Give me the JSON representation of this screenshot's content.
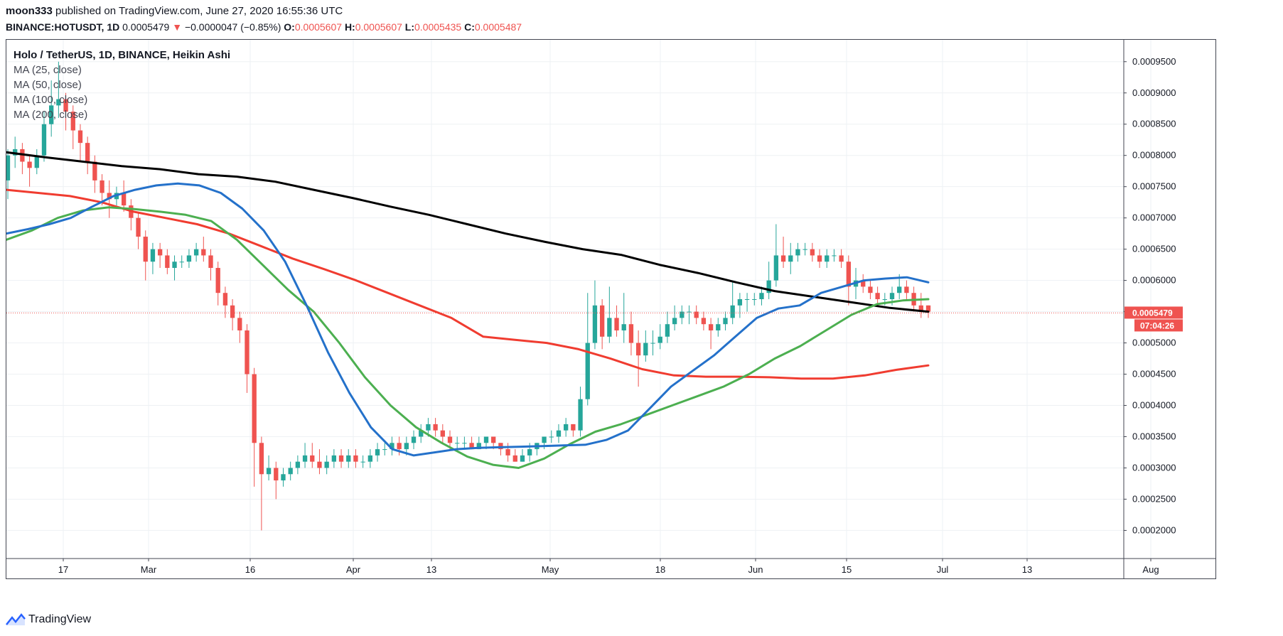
{
  "header": {
    "author": "moon333",
    "published_text": "published on TradingView.com, June 27, 2020 16:55:36 UTC",
    "symbol": "BINANCE:HOTUSDT, 1D",
    "last": "0.0005479",
    "change": "−0.0000047 (−0.85%)",
    "o_label": "O:",
    "o_value": "0.0005607",
    "h_label": "H:",
    "h_value": "0.0005607",
    "l_label": "L:",
    "l_value": "0.0005435",
    "c_label": "C:",
    "c_value": "0.0005487"
  },
  "legend": {
    "title": "Holo / TetherUS, 1D, BINANCE, Heikin Ashi",
    "items": [
      "MA (25, close)",
      "MA (50, close)",
      "MA (100, close)",
      "MA (200, close)"
    ]
  },
  "footer": {
    "brand": "TradingView"
  },
  "colors": {
    "up": "#26a69a",
    "down": "#ef5350",
    "ma25": "#2471ca",
    "ma50": "#4caf50",
    "ma100": "#f03c30",
    "ma200": "#000000",
    "grid": "#eef1f4",
    "axis_text": "#131722"
  },
  "price_tag": {
    "value": "0.0005479",
    "countdown": "07:04:26"
  },
  "chart_data": {
    "type": "candlestick",
    "title": "Holo / TetherUS, 1D, BINANCE, Heikin Ashi",
    "y_axis": {
      "ticks": [
        "0.0009500",
        "0.0009000",
        "0.0008500",
        "0.0008000",
        "0.0007500",
        "0.0007000",
        "0.0006500",
        "0.0006000",
        "0.0005500",
        "0.0005000",
        "0.0004500",
        "0.0004000",
        "0.0003500",
        "0.0003000",
        "0.0002500",
        "0.0002000"
      ],
      "range": [
        0.000155,
        0.000985
      ]
    },
    "x_axis": {
      "ticks": [
        "17",
        "Mar",
        "16",
        "Apr",
        "13",
        "May",
        "18",
        "Jun",
        "15",
        "Jul",
        "13",
        "Aug"
      ]
    },
    "ohlc": [
      [
        0.00076,
        0.00081,
        0.00073,
        0.0008
      ],
      [
        0.0008,
        0.00083,
        0.00078,
        0.00081
      ],
      [
        0.00081,
        0.00082,
        0.00077,
        0.00079
      ],
      [
        0.00079,
        0.0008,
        0.00075,
        0.00078
      ],
      [
        0.00078,
        0.00081,
        0.00077,
        0.0008
      ],
      [
        0.0008,
        0.00087,
        0.00079,
        0.00085
      ],
      [
        0.00085,
        0.00092,
        0.00083,
        0.00088
      ],
      [
        0.00088,
        0.00095,
        0.00086,
        0.00089
      ],
      [
        0.00089,
        0.0009,
        0.00084,
        0.00087
      ],
      [
        0.00087,
        0.00088,
        0.00081,
        0.00084
      ],
      [
        0.00084,
        0.00085,
        0.00079,
        0.00082
      ],
      [
        0.00082,
        0.00083,
        0.00077,
        0.00079
      ],
      [
        0.00079,
        0.0008,
        0.00074,
        0.00076
      ],
      [
        0.00076,
        0.00077,
        0.00072,
        0.00074
      ],
      [
        0.00074,
        0.00076,
        0.0007,
        0.00073
      ],
      [
        0.00073,
        0.00075,
        0.00072,
        0.00074
      ],
      [
        0.00074,
        0.00076,
        0.00071,
        0.00072
      ],
      [
        0.00072,
        0.00073,
        0.00068,
        0.0007
      ],
      [
        0.0007,
        0.00071,
        0.00065,
        0.00067
      ],
      [
        0.00067,
        0.00068,
        0.0006,
        0.00063
      ],
      [
        0.00063,
        0.00066,
        0.00061,
        0.00065
      ],
      [
        0.00065,
        0.00066,
        0.00062,
        0.00064
      ],
      [
        0.00064,
        0.00065,
        0.00061,
        0.00062
      ],
      [
        0.00062,
        0.00064,
        0.0006,
        0.00063
      ],
      [
        0.00063,
        0.00064,
        0.00062,
        0.00063
      ],
      [
        0.00063,
        0.00065,
        0.00062,
        0.00064
      ],
      [
        0.00064,
        0.00066,
        0.00063,
        0.00065
      ],
      [
        0.00065,
        0.00067,
        0.00063,
        0.00064
      ],
      [
        0.00064,
        0.00065,
        0.0006,
        0.00062
      ],
      [
        0.00062,
        0.00063,
        0.00056,
        0.00058
      ],
      [
        0.00058,
        0.00059,
        0.00054,
        0.00056
      ],
      [
        0.00056,
        0.00057,
        0.00052,
        0.00054
      ],
      [
        0.00054,
        0.00055,
        0.0005,
        0.00052
      ],
      [
        0.00052,
        0.00053,
        0.00042,
        0.00045
      ],
      [
        0.00045,
        0.00046,
        0.00027,
        0.00034
      ],
      [
        0.00034,
        0.00035,
        0.0002,
        0.00029
      ],
      [
        0.00029,
        0.00032,
        0.00028,
        0.0003
      ],
      [
        0.0003,
        0.00031,
        0.00025,
        0.00028
      ],
      [
        0.00028,
        0.0003,
        0.00027,
        0.00029
      ],
      [
        0.00029,
        0.00031,
        0.00028,
        0.0003
      ],
      [
        0.0003,
        0.00032,
        0.00029,
        0.00031
      ],
      [
        0.00031,
        0.00034,
        0.0003,
        0.00032
      ],
      [
        0.00032,
        0.00034,
        0.0003,
        0.00031
      ],
      [
        0.00031,
        0.00033,
        0.00029,
        0.0003
      ],
      [
        0.0003,
        0.00032,
        0.00029,
        0.00031
      ],
      [
        0.00031,
        0.00033,
        0.0003,
        0.00032
      ],
      [
        0.00032,
        0.00033,
        0.0003,
        0.00031
      ],
      [
        0.00031,
        0.00033,
        0.0003,
        0.00032
      ],
      [
        0.00032,
        0.00033,
        0.0003,
        0.00031
      ],
      [
        0.00031,
        0.00032,
        0.0003,
        0.00031
      ],
      [
        0.00031,
        0.00033,
        0.0003,
        0.00032
      ],
      [
        0.00032,
        0.00034,
        0.00031,
        0.00033
      ],
      [
        0.00033,
        0.00034,
        0.00032,
        0.00033
      ],
      [
        0.00033,
        0.00035,
        0.00032,
        0.00034
      ],
      [
        0.00034,
        0.00035,
        0.00032,
        0.00033
      ],
      [
        0.00033,
        0.00035,
        0.00032,
        0.00034
      ],
      [
        0.00034,
        0.00036,
        0.00033,
        0.00035
      ],
      [
        0.00035,
        0.00037,
        0.00034,
        0.00036
      ],
      [
        0.00036,
        0.00038,
        0.00035,
        0.00037
      ],
      [
        0.00037,
        0.00038,
        0.00035,
        0.00036
      ],
      [
        0.00036,
        0.00037,
        0.00034,
        0.00035
      ],
      [
        0.00035,
        0.00036,
        0.00033,
        0.00034
      ],
      [
        0.00034,
        0.00035,
        0.00033,
        0.00034
      ],
      [
        0.00034,
        0.00035,
        0.00033,
        0.00034
      ],
      [
        0.00034,
        0.00035,
        0.00033,
        0.00033
      ],
      [
        0.00033,
        0.00035,
        0.00033,
        0.00034
      ],
      [
        0.00034,
        0.00035,
        0.00033,
        0.00035
      ],
      [
        0.00035,
        0.00035,
        0.00033,
        0.00034
      ],
      [
        0.00034,
        0.00034,
        0.00032,
        0.00033
      ],
      [
        0.00033,
        0.00034,
        0.00031,
        0.00032
      ],
      [
        0.00032,
        0.00033,
        0.00031,
        0.00031
      ],
      [
        0.00031,
        0.00033,
        0.00031,
        0.00032
      ],
      [
        0.00032,
        0.00034,
        0.00031,
        0.00033
      ],
      [
        0.00033,
        0.00034,
        0.00032,
        0.00034
      ],
      [
        0.00034,
        0.00035,
        0.00033,
        0.00035
      ],
      [
        0.00035,
        0.00036,
        0.00034,
        0.00035
      ],
      [
        0.00035,
        0.00037,
        0.00034,
        0.00036
      ],
      [
        0.00036,
        0.00038,
        0.00035,
        0.00037
      ],
      [
        0.00037,
        0.00037,
        0.00035,
        0.00036
      ],
      [
        0.00036,
        0.00043,
        0.00035,
        0.00041
      ],
      [
        0.00041,
        0.00058,
        0.0004,
        0.0005
      ],
      [
        0.0005,
        0.0006,
        0.00049,
        0.00056
      ],
      [
        0.00056,
        0.00057,
        0.00049,
        0.00051
      ],
      [
        0.00051,
        0.00059,
        0.0005,
        0.00054
      ],
      [
        0.00054,
        0.00056,
        0.00051,
        0.00052
      ],
      [
        0.00052,
        0.00058,
        0.0005,
        0.00053
      ],
      [
        0.00053,
        0.00055,
        0.00048,
        0.0005
      ],
      [
        0.0005,
        0.00052,
        0.00043,
        0.00048
      ],
      [
        0.00048,
        0.00052,
        0.00047,
        0.0005
      ],
      [
        0.0005,
        0.00052,
        0.00048,
        0.0005
      ],
      [
        0.0005,
        0.00053,
        0.00049,
        0.00051
      ],
      [
        0.00051,
        0.00055,
        0.0005,
        0.00053
      ],
      [
        0.00053,
        0.00056,
        0.00052,
        0.00054
      ],
      [
        0.00054,
        0.00056,
        0.00053,
        0.00055
      ],
      [
        0.00055,
        0.00056,
        0.00053,
        0.00055
      ],
      [
        0.00055,
        0.00056,
        0.00053,
        0.00054
      ],
      [
        0.00054,
        0.00055,
        0.00052,
        0.00053
      ],
      [
        0.00053,
        0.00054,
        0.00049,
        0.00052
      ],
      [
        0.00052,
        0.00054,
        0.00051,
        0.00053
      ],
      [
        0.00053,
        0.00055,
        0.00052,
        0.00054
      ],
      [
        0.00054,
        0.0006,
        0.00053,
        0.00056
      ],
      [
        0.00056,
        0.00058,
        0.00054,
        0.00057
      ],
      [
        0.00057,
        0.00058,
        0.00055,
        0.00057
      ],
      [
        0.00057,
        0.00058,
        0.00056,
        0.00057
      ],
      [
        0.00057,
        0.00059,
        0.00056,
        0.00058
      ],
      [
        0.00058,
        0.00063,
        0.00057,
        0.0006
      ],
      [
        0.0006,
        0.00069,
        0.00059,
        0.00064
      ],
      [
        0.00064,
        0.00067,
        0.00062,
        0.00063
      ],
      [
        0.00063,
        0.00066,
        0.00061,
        0.00064
      ],
      [
        0.00064,
        0.00066,
        0.00063,
        0.00065
      ],
      [
        0.00065,
        0.00066,
        0.00064,
        0.00065
      ],
      [
        0.00065,
        0.00066,
        0.00063,
        0.00064
      ],
      [
        0.00064,
        0.00065,
        0.00062,
        0.00063
      ],
      [
        0.00063,
        0.00065,
        0.00062,
        0.00064
      ],
      [
        0.00064,
        0.00065,
        0.00063,
        0.00064
      ],
      [
        0.00064,
        0.00065,
        0.00062,
        0.00063
      ],
      [
        0.00063,
        0.00064,
        0.00056,
        0.00059
      ],
      [
        0.00059,
        0.00062,
        0.00057,
        0.0006
      ],
      [
        0.0006,
        0.00061,
        0.00058,
        0.00059
      ],
      [
        0.00059,
        0.0006,
        0.00057,
        0.00058
      ],
      [
        0.00058,
        0.00059,
        0.00056,
        0.00057
      ],
      [
        0.00057,
        0.00058,
        0.00056,
        0.00057
      ],
      [
        0.00057,
        0.00059,
        0.00056,
        0.00058
      ],
      [
        0.00058,
        0.00061,
        0.00057,
        0.00059
      ],
      [
        0.00059,
        0.0006,
        0.00057,
        0.00058
      ],
      [
        0.00058,
        0.00059,
        0.00055,
        0.00056
      ],
      [
        0.00056,
        0.00058,
        0.00054,
        0.00055
      ],
      [
        0.00056,
        0.00056,
        0.00054,
        0.00055
      ]
    ],
    "ma25": [
      0.000675,
      0.000682,
      0.00069,
      0.0007,
      0.000718,
      0.000735,
      0.000745,
      0.000752,
      0.000755,
      0.000752,
      0.00074,
      0.000715,
      0.00068,
      0.00063,
      0.00056,
      0.000485,
      0.00042,
      0.000365,
      0.00033,
      0.00032,
      0.000325,
      0.00033,
      0.000332,
      0.000333,
      0.000334,
      0.000335,
      0.000336,
      0.000337,
      0.000345,
      0.00036,
      0.000395,
      0.00043,
      0.000455,
      0.00048,
      0.00051,
      0.00054,
      0.000555,
      0.00056,
      0.00058,
      0.00059,
      0.0006,
      0.000603,
      0.000605,
      0.000597
    ],
    "ma50": [
      0.000665,
      0.00068,
      0.0007,
      0.000712,
      0.000717,
      0.000714,
      0.00071,
      0.000705,
      0.000695,
      0.000665,
      0.000625,
      0.000585,
      0.00055,
      0.0005,
      0.000445,
      0.0004,
      0.000365,
      0.00034,
      0.000318,
      0.000305,
      0.0003,
      0.000315,
      0.000338,
      0.000358,
      0.00037,
      0.000385,
      0.0004,
      0.000415,
      0.00043,
      0.00045,
      0.000475,
      0.000495,
      0.00052,
      0.000545,
      0.000562,
      0.000568,
      0.00057
    ],
    "ma100": [
      0.000745,
      0.00074,
      0.000735,
      0.000725,
      0.00071,
      0.0007,
      0.00069,
      0.000675,
      0.000655,
      0.000635,
      0.000618,
      0.0006,
      0.00058,
      0.00056,
      0.00054,
      0.00051,
      0.000505,
      0.0005,
      0.00049,
      0.000475,
      0.000458,
      0.000448,
      0.000446,
      0.000446,
      0.000445,
      0.000443,
      0.000443,
      0.000448,
      0.000457,
      0.000464
    ],
    "ma200": [
      0.000805,
      0.000797,
      0.00079,
      0.000783,
      0.000778,
      0.00077,
      0.000766,
      0.000758,
      0.000745,
      0.000732,
      0.000718,
      0.000705,
      0.00069,
      0.000675,
      0.000662,
      0.00065,
      0.000641,
      0.000625,
      0.000612,
      0.000597,
      0.000583,
      0.000574,
      0.000565,
      0.000556,
      0.00055
    ]
  }
}
